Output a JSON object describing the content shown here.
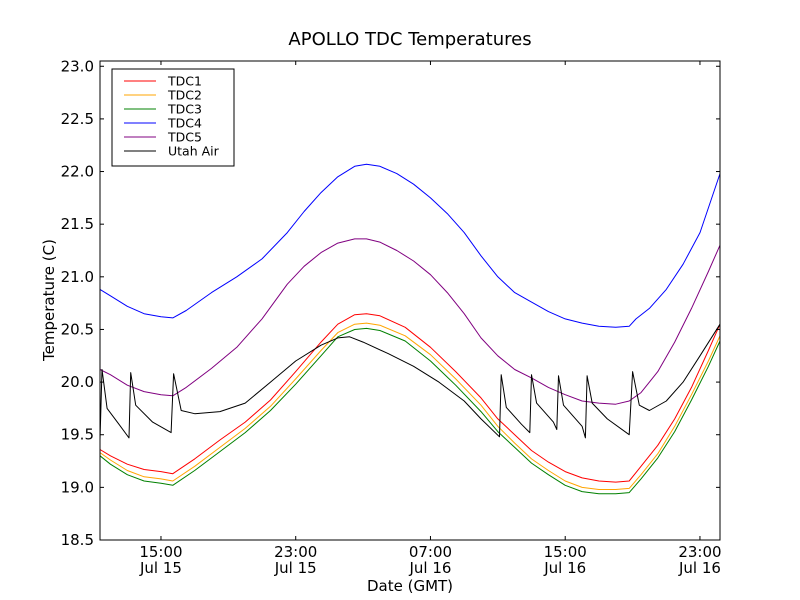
{
  "chart_data": {
    "type": "line",
    "title": "APOLLO TDC Temperatures",
    "xlabel": "Date (GMT)",
    "ylabel": "Temperature (C)",
    "x_units": "hours since Jul 15 00:00 GMT",
    "xlim": [
      11.38,
      48.19
    ],
    "ylim": [
      18.5,
      23.05
    ],
    "grid": false,
    "legend_position": "top-left",
    "x_ticks": [
      {
        "value": 15,
        "label_time": "15:00",
        "label_date": "Jul 15"
      },
      {
        "value": 23,
        "label_time": "23:00",
        "label_date": "Jul 15"
      },
      {
        "value": 31,
        "label_time": "07:00",
        "label_date": "Jul 16"
      },
      {
        "value": 39,
        "label_time": "15:00",
        "label_date": "Jul 16"
      },
      {
        "value": 47,
        "label_time": "23:00",
        "label_date": "Jul 16"
      }
    ],
    "y_ticks": [
      "18.5",
      "19.0",
      "19.5",
      "20.0",
      "20.5",
      "21.0",
      "21.5",
      "22.0",
      "22.5",
      "23.0"
    ],
    "series": [
      {
        "name": "TDC1",
        "color": "#ff0000",
        "points": [
          [
            11.38,
            19.36
          ],
          [
            12.0,
            19.3
          ],
          [
            13.0,
            19.22
          ],
          [
            14.0,
            19.17
          ],
          [
            15.0,
            19.15
          ],
          [
            15.7,
            19.13
          ],
          [
            17.0,
            19.27
          ],
          [
            18.5,
            19.45
          ],
          [
            20.0,
            19.62
          ],
          [
            21.5,
            19.83
          ],
          [
            23.0,
            20.1
          ],
          [
            24.5,
            20.38
          ],
          [
            25.5,
            20.55
          ],
          [
            26.5,
            20.64
          ],
          [
            27.2,
            20.65
          ],
          [
            28.0,
            20.63
          ],
          [
            29.5,
            20.52
          ],
          [
            31.0,
            20.33
          ],
          [
            32.5,
            20.1
          ],
          [
            34.0,
            19.85
          ],
          [
            35.0,
            19.65
          ],
          [
            36.0,
            19.5
          ],
          [
            37.0,
            19.35
          ],
          [
            38.0,
            19.24
          ],
          [
            39.0,
            19.15
          ],
          [
            40.0,
            19.09
          ],
          [
            41.0,
            19.06
          ],
          [
            42.0,
            19.05
          ],
          [
            42.8,
            19.06
          ],
          [
            43.5,
            19.2
          ],
          [
            44.5,
            19.4
          ],
          [
            45.5,
            19.65
          ],
          [
            46.5,
            19.95
          ],
          [
            47.5,
            20.3
          ],
          [
            48.19,
            20.55
          ]
        ]
      },
      {
        "name": "TDC2",
        "color": "#ffa500",
        "points": [
          [
            11.38,
            19.33
          ],
          [
            12.0,
            19.26
          ],
          [
            13.0,
            19.16
          ],
          [
            14.0,
            19.1
          ],
          [
            15.0,
            19.08
          ],
          [
            15.7,
            19.06
          ],
          [
            17.0,
            19.2
          ],
          [
            18.5,
            19.38
          ],
          [
            20.0,
            19.56
          ],
          [
            21.5,
            19.77
          ],
          [
            23.0,
            20.03
          ],
          [
            24.5,
            20.3
          ],
          [
            25.5,
            20.47
          ],
          [
            26.5,
            20.55
          ],
          [
            27.2,
            20.56
          ],
          [
            28.0,
            20.54
          ],
          [
            29.5,
            20.44
          ],
          [
            31.0,
            20.26
          ],
          [
            32.5,
            20.03
          ],
          [
            34.0,
            19.78
          ],
          [
            35.0,
            19.58
          ],
          [
            36.0,
            19.42
          ],
          [
            37.0,
            19.27
          ],
          [
            38.0,
            19.16
          ],
          [
            39.0,
            19.06
          ],
          [
            40.0,
            19.0
          ],
          [
            41.0,
            18.98
          ],
          [
            42.0,
            18.98
          ],
          [
            42.8,
            18.99
          ],
          [
            43.5,
            19.12
          ],
          [
            44.5,
            19.32
          ],
          [
            45.5,
            19.58
          ],
          [
            46.5,
            19.88
          ],
          [
            47.5,
            20.2
          ],
          [
            48.19,
            20.44
          ]
        ]
      },
      {
        "name": "TDC3",
        "color": "#008000",
        "points": [
          [
            11.38,
            19.3
          ],
          [
            12.0,
            19.22
          ],
          [
            13.0,
            19.12
          ],
          [
            14.0,
            19.06
          ],
          [
            15.0,
            19.04
          ],
          [
            15.7,
            19.02
          ],
          [
            17.0,
            19.16
          ],
          [
            18.5,
            19.34
          ],
          [
            20.0,
            19.52
          ],
          [
            21.5,
            19.73
          ],
          [
            23.0,
            19.98
          ],
          [
            24.5,
            20.25
          ],
          [
            25.5,
            20.43
          ],
          [
            26.5,
            20.5
          ],
          [
            27.2,
            20.51
          ],
          [
            28.0,
            20.49
          ],
          [
            29.5,
            20.39
          ],
          [
            31.0,
            20.2
          ],
          [
            32.5,
            19.97
          ],
          [
            34.0,
            19.72
          ],
          [
            35.0,
            19.53
          ],
          [
            36.0,
            19.38
          ],
          [
            37.0,
            19.23
          ],
          [
            38.0,
            19.12
          ],
          [
            39.0,
            19.02
          ],
          [
            40.0,
            18.96
          ],
          [
            41.0,
            18.94
          ],
          [
            42.0,
            18.94
          ],
          [
            42.8,
            18.95
          ],
          [
            43.5,
            19.08
          ],
          [
            44.5,
            19.28
          ],
          [
            45.5,
            19.53
          ],
          [
            46.5,
            19.83
          ],
          [
            47.5,
            20.15
          ],
          [
            48.19,
            20.39
          ]
        ]
      },
      {
        "name": "TDC4",
        "color": "#0000ff",
        "points": [
          [
            11.38,
            20.88
          ],
          [
            12.0,
            20.82
          ],
          [
            13.0,
            20.72
          ],
          [
            14.0,
            20.65
          ],
          [
            15.0,
            20.62
          ],
          [
            15.7,
            20.61
          ],
          [
            16.5,
            20.68
          ],
          [
            18.0,
            20.85
          ],
          [
            19.5,
            21.0
          ],
          [
            21.0,
            21.17
          ],
          [
            22.5,
            21.42
          ],
          [
            23.5,
            21.62
          ],
          [
            24.5,
            21.8
          ],
          [
            25.5,
            21.95
          ],
          [
            26.5,
            22.05
          ],
          [
            27.2,
            22.07
          ],
          [
            28.0,
            22.05
          ],
          [
            29.0,
            21.98
          ],
          [
            30.0,
            21.88
          ],
          [
            31.0,
            21.75
          ],
          [
            32.0,
            21.6
          ],
          [
            33.0,
            21.42
          ],
          [
            34.0,
            21.2
          ],
          [
            35.0,
            21.0
          ],
          [
            36.0,
            20.85
          ],
          [
            37.0,
            20.76
          ],
          [
            38.0,
            20.67
          ],
          [
            39.0,
            20.6
          ],
          [
            40.0,
            20.56
          ],
          [
            41.0,
            20.53
          ],
          [
            42.0,
            20.52
          ],
          [
            42.8,
            20.53
          ],
          [
            43.2,
            20.6
          ],
          [
            44.0,
            20.7
          ],
          [
            45.0,
            20.88
          ],
          [
            46.0,
            21.12
          ],
          [
            47.0,
            21.42
          ],
          [
            48.19,
            21.98
          ]
        ]
      },
      {
        "name": "TDC5",
        "color": "#800080",
        "points": [
          [
            11.38,
            20.12
          ],
          [
            12.0,
            20.07
          ],
          [
            13.0,
            19.97
          ],
          [
            14.0,
            19.91
          ],
          [
            15.0,
            19.88
          ],
          [
            15.7,
            19.87
          ],
          [
            16.5,
            19.95
          ],
          [
            18.0,
            20.13
          ],
          [
            19.5,
            20.33
          ],
          [
            21.0,
            20.6
          ],
          [
            22.5,
            20.93
          ],
          [
            23.5,
            21.1
          ],
          [
            24.5,
            21.23
          ],
          [
            25.5,
            21.32
          ],
          [
            26.5,
            21.36
          ],
          [
            27.2,
            21.36
          ],
          [
            28.0,
            21.33
          ],
          [
            29.0,
            21.25
          ],
          [
            30.0,
            21.15
          ],
          [
            31.0,
            21.02
          ],
          [
            32.0,
            20.85
          ],
          [
            33.0,
            20.65
          ],
          [
            34.0,
            20.42
          ],
          [
            35.0,
            20.25
          ],
          [
            36.0,
            20.12
          ],
          [
            37.0,
            20.04
          ],
          [
            38.0,
            19.95
          ],
          [
            39.0,
            19.88
          ],
          [
            40.0,
            19.82
          ],
          [
            41.0,
            19.8
          ],
          [
            42.0,
            19.79
          ],
          [
            42.8,
            19.82
          ],
          [
            43.5,
            19.9
          ],
          [
            44.5,
            20.1
          ],
          [
            45.5,
            20.38
          ],
          [
            46.5,
            20.7
          ],
          [
            47.5,
            21.05
          ],
          [
            48.19,
            21.3
          ]
        ]
      },
      {
        "name": "Utah Air",
        "color": "#000000",
        "points": [
          [
            11.38,
            19.45
          ],
          [
            11.5,
            20.12
          ],
          [
            11.8,
            19.75
          ],
          [
            12.5,
            19.6
          ],
          [
            13.1,
            19.47
          ],
          [
            13.2,
            20.09
          ],
          [
            13.5,
            19.78
          ],
          [
            14.5,
            19.62
          ],
          [
            15.6,
            19.52
          ],
          [
            15.75,
            20.08
          ],
          [
            16.2,
            19.73
          ],
          [
            17.0,
            19.7
          ],
          [
            18.5,
            19.72
          ],
          [
            20.0,
            19.8
          ],
          [
            21.5,
            20.0
          ],
          [
            23.0,
            20.2
          ],
          [
            24.5,
            20.35
          ],
          [
            25.5,
            20.42
          ],
          [
            26.2,
            20.43
          ],
          [
            27.0,
            20.38
          ],
          [
            28.5,
            20.27
          ],
          [
            30.0,
            20.15
          ],
          [
            31.5,
            20.0
          ],
          [
            33.0,
            19.82
          ],
          [
            34.0,
            19.65
          ],
          [
            35.1,
            19.48
          ],
          [
            35.2,
            20.07
          ],
          [
            35.5,
            19.76
          ],
          [
            36.4,
            19.6
          ],
          [
            36.9,
            19.52
          ],
          [
            37.0,
            20.07
          ],
          [
            37.3,
            19.8
          ],
          [
            38.3,
            19.62
          ],
          [
            38.5,
            19.55
          ],
          [
            38.6,
            20.06
          ],
          [
            38.9,
            19.78
          ],
          [
            40.0,
            19.58
          ],
          [
            40.2,
            19.47
          ],
          [
            40.3,
            20.06
          ],
          [
            40.6,
            19.8
          ],
          [
            41.5,
            19.65
          ],
          [
            42.8,
            19.5
          ],
          [
            43.0,
            20.1
          ],
          [
            43.4,
            19.78
          ],
          [
            44.0,
            19.73
          ],
          [
            45.0,
            19.82
          ],
          [
            46.0,
            20.0
          ],
          [
            47.0,
            20.25
          ],
          [
            48.19,
            20.55
          ]
        ]
      }
    ]
  }
}
